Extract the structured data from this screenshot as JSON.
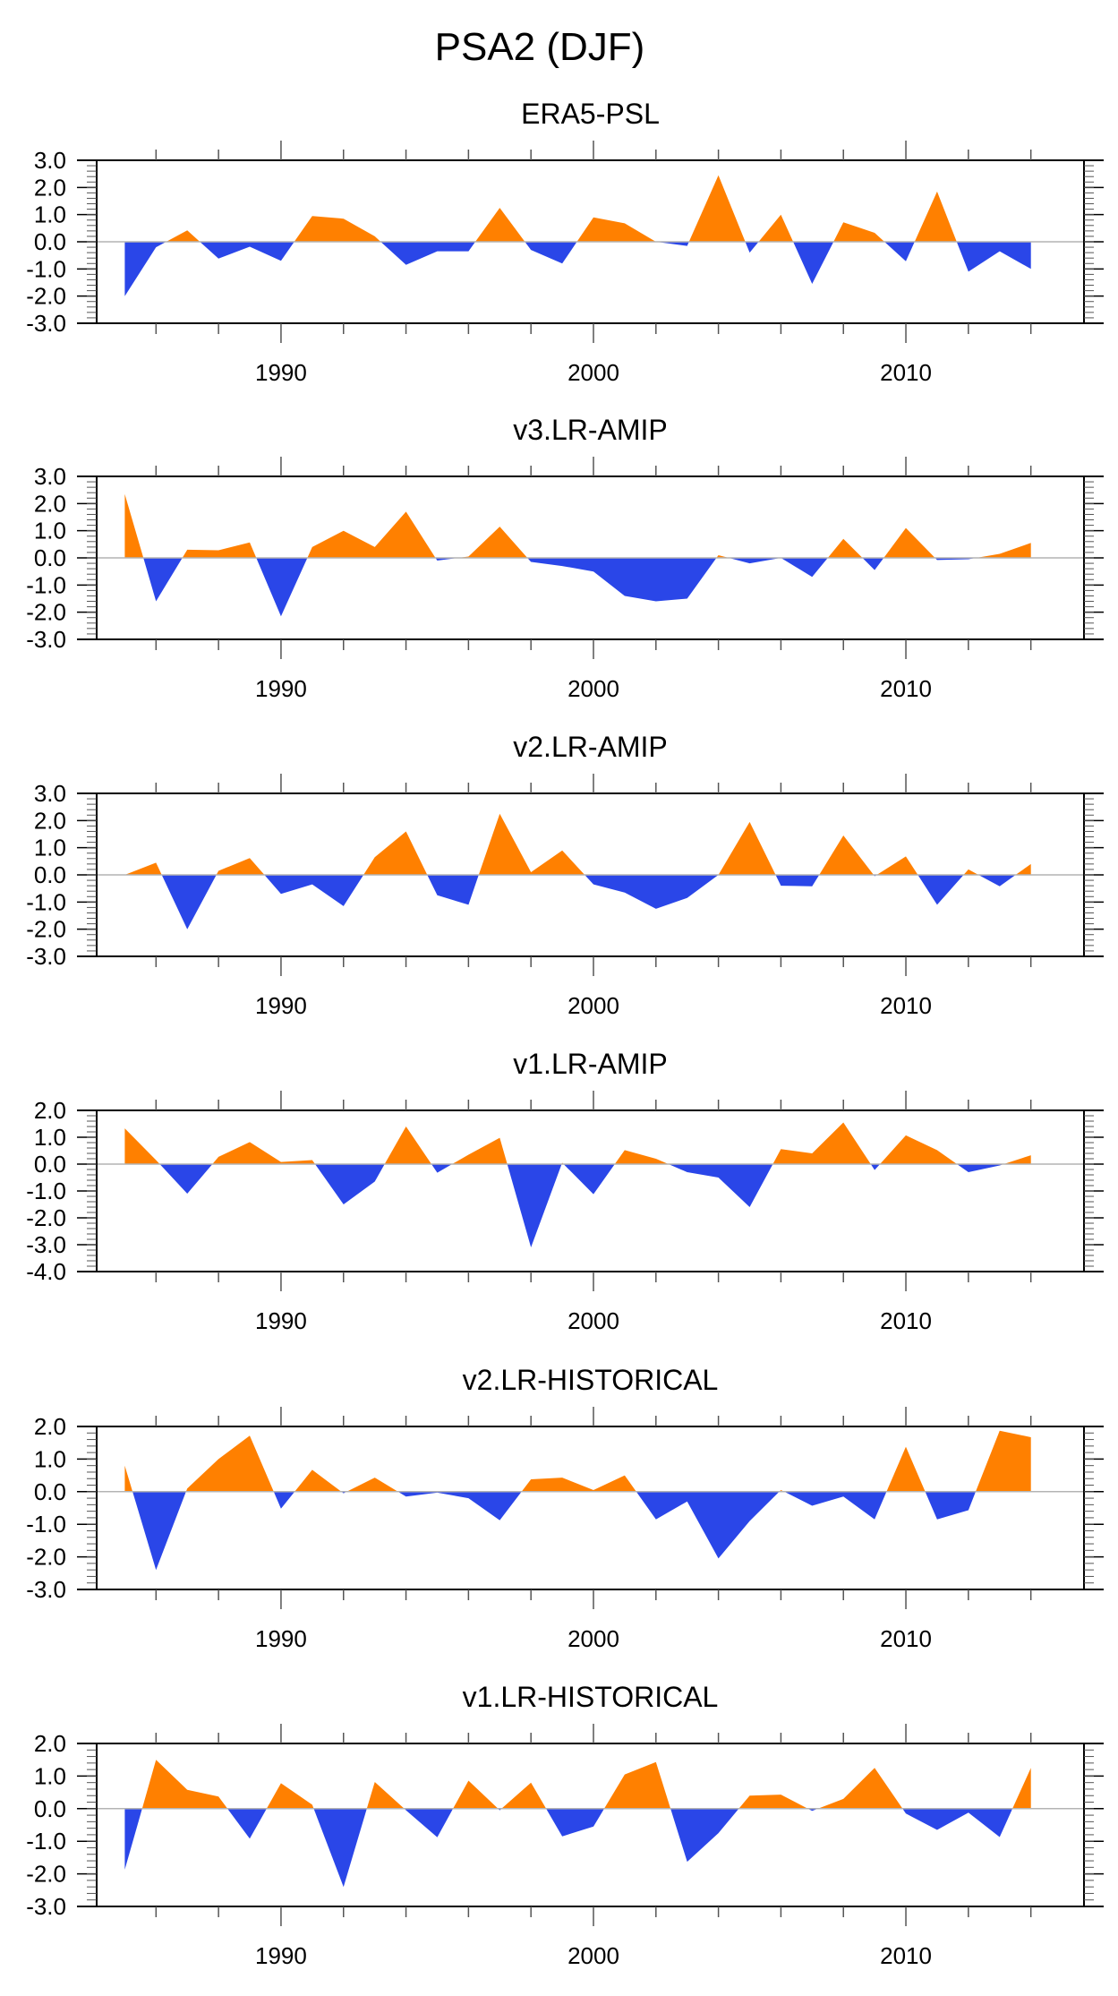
{
  "figure": {
    "title": "PSA2 (DJF)",
    "colors": {
      "positive": "#ff8000",
      "negative": "#2a46e8",
      "zero_line": "#b4b4b4",
      "axis": "#000000"
    }
  },
  "chart_data": [
    {
      "type": "area",
      "title": "ERA5-PSL",
      "xlabel": "",
      "ylabel": "",
      "x": [
        1985,
        1986,
        1987,
        1988,
        1989,
        1990,
        1991,
        1992,
        1993,
        1994,
        1995,
        1996,
        1997,
        1998,
        1999,
        2000,
        2001,
        2002,
        2003,
        2004,
        2005,
        2006,
        2007,
        2008,
        2009,
        2010,
        2011,
        2012,
        2013,
        2014
      ],
      "values": [
        -2.0,
        -0.2,
        0.42,
        -0.62,
        -0.18,
        -0.7,
        0.95,
        0.85,
        0.2,
        -0.85,
        -0.35,
        -0.35,
        1.25,
        -0.3,
        -0.8,
        0.9,
        0.68,
        0.0,
        -0.15,
        2.45,
        -0.4,
        1.0,
        -1.55,
        0.72,
        0.33,
        -0.72,
        1.85,
        -1.1,
        -0.35,
        -1.0
      ],
      "ylim": [
        -3.0,
        3.0
      ],
      "yticks": [
        "3.0",
        "2.0",
        "1.0",
        "0.0",
        "-1.0",
        "-2.0",
        "-3.0"
      ],
      "ytick_values": [
        3,
        2,
        1,
        0,
        -1,
        -2,
        -3
      ],
      "xlim": [
        1984.1,
        2015.7
      ],
      "xtick_labels": [
        "1990",
        "2000",
        "2010"
      ],
      "xtick_values": [
        1990,
        2000,
        2010
      ],
      "grid": false,
      "fill": "positive orange / negative blue about zero"
    },
    {
      "type": "area",
      "title": "v3.LR-AMIP",
      "xlabel": "",
      "ylabel": "",
      "x": [
        1985,
        1986,
        1987,
        1988,
        1989,
        1990,
        1991,
        1992,
        1993,
        1994,
        1995,
        1996,
        1997,
        1998,
        1999,
        2000,
        2001,
        2002,
        2003,
        2004,
        2005,
        2006,
        2007,
        2008,
        2009,
        2010,
        2011,
        2012,
        2013,
        2014
      ],
      "values": [
        2.35,
        -1.6,
        0.3,
        0.28,
        0.57,
        -2.15,
        0.4,
        1.0,
        0.4,
        1.7,
        -0.1,
        0.05,
        1.15,
        -0.15,
        -0.3,
        -0.5,
        -1.4,
        -1.6,
        -1.5,
        0.1,
        -0.2,
        0.0,
        -0.7,
        0.7,
        -0.45,
        1.1,
        -0.08,
        -0.05,
        0.15,
        0.55
      ],
      "ylim": [
        -3.0,
        3.0
      ],
      "yticks": [
        "3.0",
        "2.0",
        "1.0",
        "0.0",
        "-1.0",
        "-2.0",
        "-3.0"
      ],
      "ytick_values": [
        3,
        2,
        1,
        0,
        -1,
        -2,
        -3
      ],
      "xlim": [
        1984.1,
        2015.7
      ],
      "xtick_labels": [
        "1990",
        "2000",
        "2010"
      ],
      "xtick_values": [
        1990,
        2000,
        2010
      ],
      "grid": false,
      "fill": "positive orange / negative blue about zero"
    },
    {
      "type": "area",
      "title": "v2.LR-AMIP",
      "xlabel": "",
      "ylabel": "",
      "x": [
        1985,
        1986,
        1987,
        1988,
        1989,
        1990,
        1991,
        1992,
        1993,
        1994,
        1995,
        1996,
        1997,
        1998,
        1999,
        2000,
        2001,
        2002,
        2003,
        2004,
        2005,
        2006,
        2007,
        2008,
        2009,
        2010,
        2011,
        2012,
        2013,
        2014
      ],
      "values": [
        0.0,
        0.45,
        -2.0,
        0.15,
        0.62,
        -0.7,
        -0.35,
        -1.15,
        0.65,
        1.6,
        -0.75,
        -1.1,
        2.25,
        0.1,
        0.9,
        -0.35,
        -0.65,
        -1.25,
        -0.85,
        0.0,
        1.95,
        -0.4,
        -0.42,
        1.45,
        -0.05,
        0.68,
        -1.1,
        0.2,
        -0.42,
        0.4
      ],
      "ylim": [
        -3.0,
        3.0
      ],
      "yticks": [
        "3.0",
        "2.0",
        "1.0",
        "0.0",
        "-1.0",
        "-2.0",
        "-3.0"
      ],
      "ytick_values": [
        3,
        2,
        1,
        0,
        -1,
        -2,
        -3
      ],
      "xlim": [
        1984.1,
        2015.7
      ],
      "xtick_labels": [
        "1990",
        "2000",
        "2010"
      ],
      "xtick_values": [
        1990,
        2000,
        2010
      ],
      "grid": false,
      "fill": "positive orange / negative blue about zero"
    },
    {
      "type": "area",
      "title": "v1.LR-AMIP",
      "xlabel": "",
      "ylabel": "",
      "x": [
        1985,
        1986,
        1987,
        1988,
        1989,
        1990,
        1991,
        1992,
        1993,
        1994,
        1995,
        1996,
        1997,
        1998,
        1999,
        2000,
        2001,
        2002,
        2003,
        2004,
        2005,
        2006,
        2007,
        2008,
        2009,
        2010,
        2011,
        2012,
        2013,
        2014
      ],
      "values": [
        1.33,
        0.15,
        -1.1,
        0.27,
        0.82,
        0.08,
        0.15,
        -1.5,
        -0.65,
        1.4,
        -0.32,
        0.35,
        0.98,
        -3.1,
        0.05,
        -1.12,
        0.52,
        0.2,
        -0.3,
        -0.5,
        -1.6,
        0.56,
        0.4,
        1.55,
        -0.22,
        1.07,
        0.52,
        -0.3,
        -0.05,
        0.33
      ],
      "ylim": [
        -4.0,
        2.0
      ],
      "yticks": [
        "2.0",
        "1.0",
        "0.0",
        "-1.0",
        "-2.0",
        "-3.0",
        "-4.0"
      ],
      "ytick_values": [
        2,
        1,
        0,
        -1,
        -2,
        -3,
        -4
      ],
      "xlim": [
        1984.1,
        2015.7
      ],
      "xtick_labels": [
        "1990",
        "2000",
        "2010"
      ],
      "xtick_values": [
        1990,
        2000,
        2010
      ],
      "grid": false,
      "fill": "positive orange / negative blue about zero"
    },
    {
      "type": "area",
      "title": "v2.LR-HISTORICAL",
      "xlabel": "",
      "ylabel": "",
      "x": [
        1985,
        1986,
        1987,
        1988,
        1989,
        1990,
        1991,
        1992,
        1993,
        1994,
        1995,
        1996,
        1997,
        1998,
        1999,
        2000,
        2001,
        2002,
        2003,
        2004,
        2005,
        2006,
        2007,
        2008,
        2009,
        2010,
        2011,
        2012,
        2013,
        2014
      ],
      "values": [
        0.8,
        -2.4,
        0.1,
        1.0,
        1.72,
        -0.52,
        0.67,
        -0.05,
        0.43,
        -0.15,
        -0.03,
        -0.2,
        -0.88,
        0.38,
        0.43,
        0.05,
        0.5,
        -0.85,
        -0.3,
        -2.05,
        -0.9,
        0.05,
        -0.43,
        -0.15,
        -0.85,
        1.38,
        -0.85,
        -0.57,
        1.87,
        1.67
      ],
      "ylim": [
        -3.0,
        2.0
      ],
      "yticks": [
        "2.0",
        "1.0",
        "0.0",
        "-1.0",
        "-2.0",
        "-3.0"
      ],
      "ytick_values": [
        2,
        1,
        0,
        -1,
        -2,
        -3
      ],
      "xlim": [
        1984.1,
        2015.7
      ],
      "xtick_labels": [
        "1990",
        "2000",
        "2010"
      ],
      "xtick_values": [
        1990,
        2000,
        2010
      ],
      "grid": false,
      "fill": "positive orange / negative blue about zero"
    },
    {
      "type": "area",
      "title": "v1.LR-HISTORICAL",
      "xlabel": "",
      "ylabel": "",
      "x": [
        1985,
        1986,
        1987,
        1988,
        1989,
        1990,
        1991,
        1992,
        1993,
        1994,
        1995,
        1996,
        1997,
        1998,
        1999,
        2000,
        2001,
        2002,
        2003,
        2004,
        2005,
        2006,
        2007,
        2008,
        2009,
        2010,
        2011,
        2012,
        2013,
        2014
      ],
      "values": [
        -1.87,
        1.5,
        0.58,
        0.37,
        -0.92,
        0.78,
        0.12,
        -2.4,
        0.82,
        -0.05,
        -0.88,
        0.86,
        -0.05,
        0.8,
        -0.85,
        -0.55,
        1.05,
        1.43,
        -1.63,
        -0.75,
        0.4,
        0.43,
        -0.07,
        0.3,
        1.25,
        -0.15,
        -0.65,
        -0.12,
        -0.87,
        1.25
      ],
      "ylim": [
        -3.0,
        2.0
      ],
      "yticks": [
        "2.0",
        "1.0",
        "0.0",
        "-1.0",
        "-2.0",
        "-3.0"
      ],
      "ytick_values": [
        2,
        1,
        0,
        -1,
        -2,
        -3
      ],
      "xlim": [
        1984.1,
        2015.7
      ],
      "xtick_labels": [
        "1990",
        "2000",
        "2010"
      ],
      "xtick_values": [
        1990,
        2000,
        2010
      ],
      "grid": false,
      "fill": "positive orange / negative blue about zero"
    }
  ]
}
